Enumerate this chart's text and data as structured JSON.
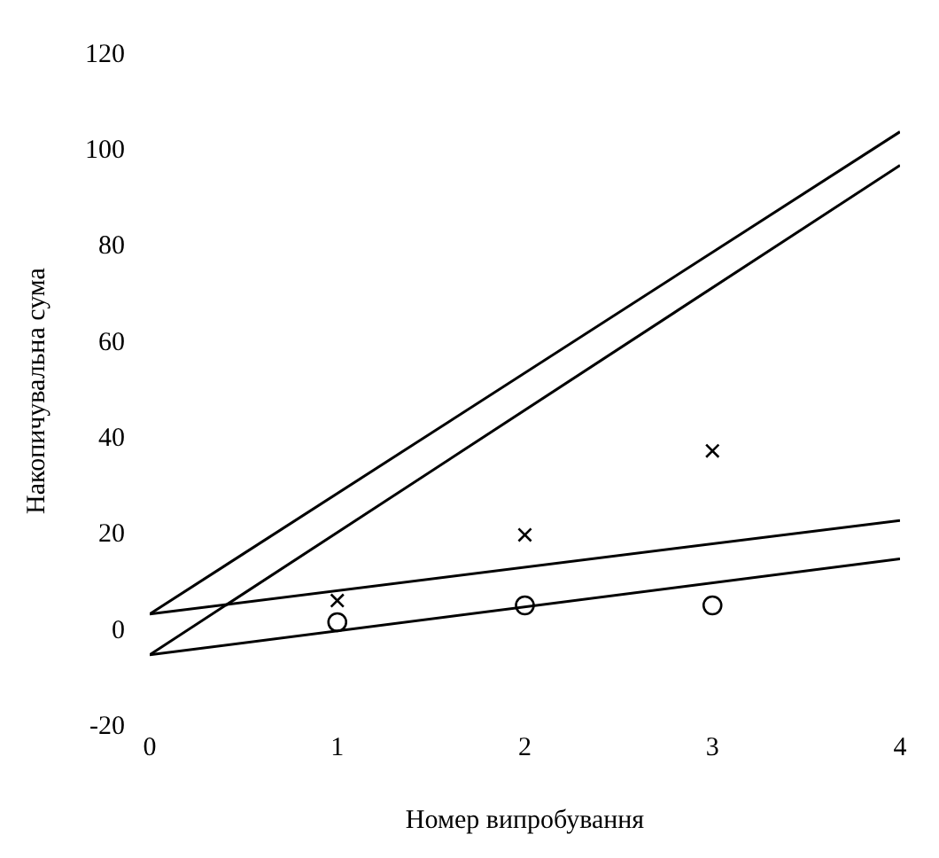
{
  "chart_data": {
    "type": "scatter",
    "xlabel": "Номер випробування",
    "ylabel": "Накопичувальна сума",
    "xlim": [
      0,
      4
    ],
    "ylim": [
      -20,
      120
    ],
    "xticks": [
      0,
      1,
      2,
      3,
      4
    ],
    "yticks": [
      -20,
      0,
      20,
      40,
      60,
      80,
      100,
      120
    ],
    "grid": false,
    "series": [
      {
        "type": "line",
        "color": "#000000",
        "marker": "none",
        "x": [
          0,
          4
        ],
        "values": [
          3.5,
          104
        ]
      },
      {
        "type": "line",
        "color": "#000000",
        "marker": "none",
        "x": [
          0,
          4
        ],
        "values": [
          -5,
          97
        ]
      },
      {
        "type": "line",
        "color": "#000000",
        "marker": "none",
        "x": [
          0,
          4
        ],
        "values": [
          3.5,
          23
        ]
      },
      {
        "type": "line",
        "color": "#000000",
        "marker": "none",
        "x": [
          0,
          4
        ],
        "values": [
          -5,
          15
        ]
      },
      {
        "type": "scatter",
        "color": "#000000",
        "marker": "cross",
        "x": [
          1,
          2,
          3
        ],
        "values": [
          6.3,
          20,
          37.5
        ]
      },
      {
        "type": "scatter",
        "color": "#000000",
        "marker": "circle",
        "x": [
          1,
          2,
          3
        ],
        "values": [
          1.8,
          5.3,
          5.3
        ]
      }
    ]
  }
}
